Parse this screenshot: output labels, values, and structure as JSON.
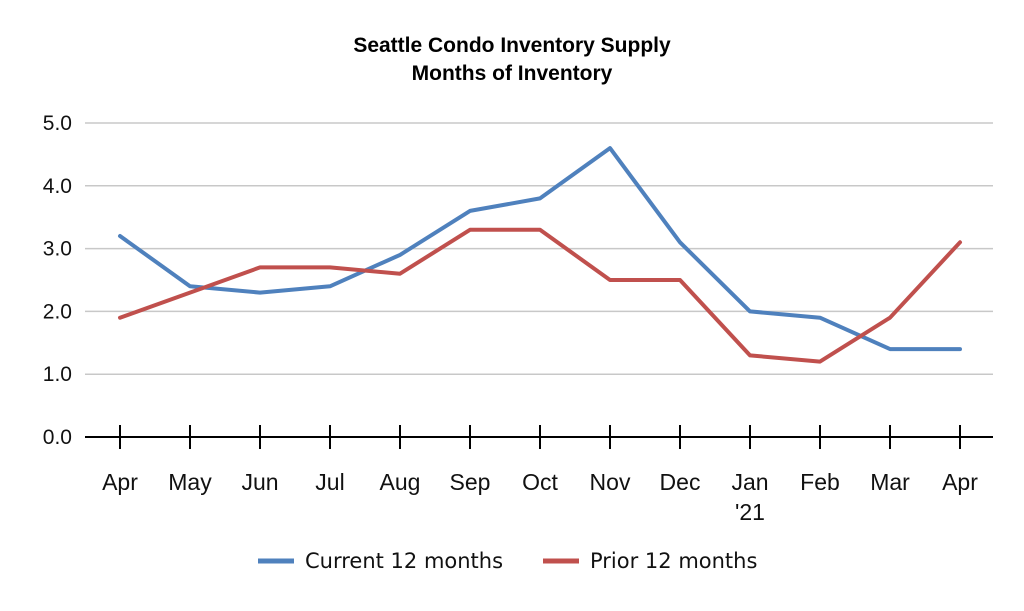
{
  "chart_data": {
    "type": "line",
    "title": "Seattle Condo Inventory Supply",
    "subtitle": "Months of Inventory",
    "categories": [
      "Apr",
      "May",
      "Jun",
      "Jul",
      "Aug",
      "Sep",
      "Oct",
      "Nov",
      "Dec",
      "Jan\n'21",
      "Feb",
      "Mar",
      "Apr"
    ],
    "series": [
      {
        "name": "Current 12 months",
        "color": "#4f81bd",
        "values": [
          3.2,
          2.4,
          2.3,
          2.4,
          2.9,
          3.6,
          3.8,
          4.6,
          3.1,
          2.0,
          1.9,
          1.4,
          1.4
        ]
      },
      {
        "name": "Prior 12 months",
        "color": "#c0504d",
        "values": [
          1.9,
          2.3,
          2.7,
          2.7,
          2.6,
          3.3,
          3.3,
          2.5,
          2.5,
          1.3,
          1.2,
          1.9,
          3.1
        ]
      }
    ],
    "yticks": [
      "0.0",
      "1.0",
      "2.0",
      "3.0",
      "4.0",
      "5.0"
    ],
    "ylim": [
      0,
      5
    ],
    "grid": true,
    "legend_position": "bottom"
  }
}
